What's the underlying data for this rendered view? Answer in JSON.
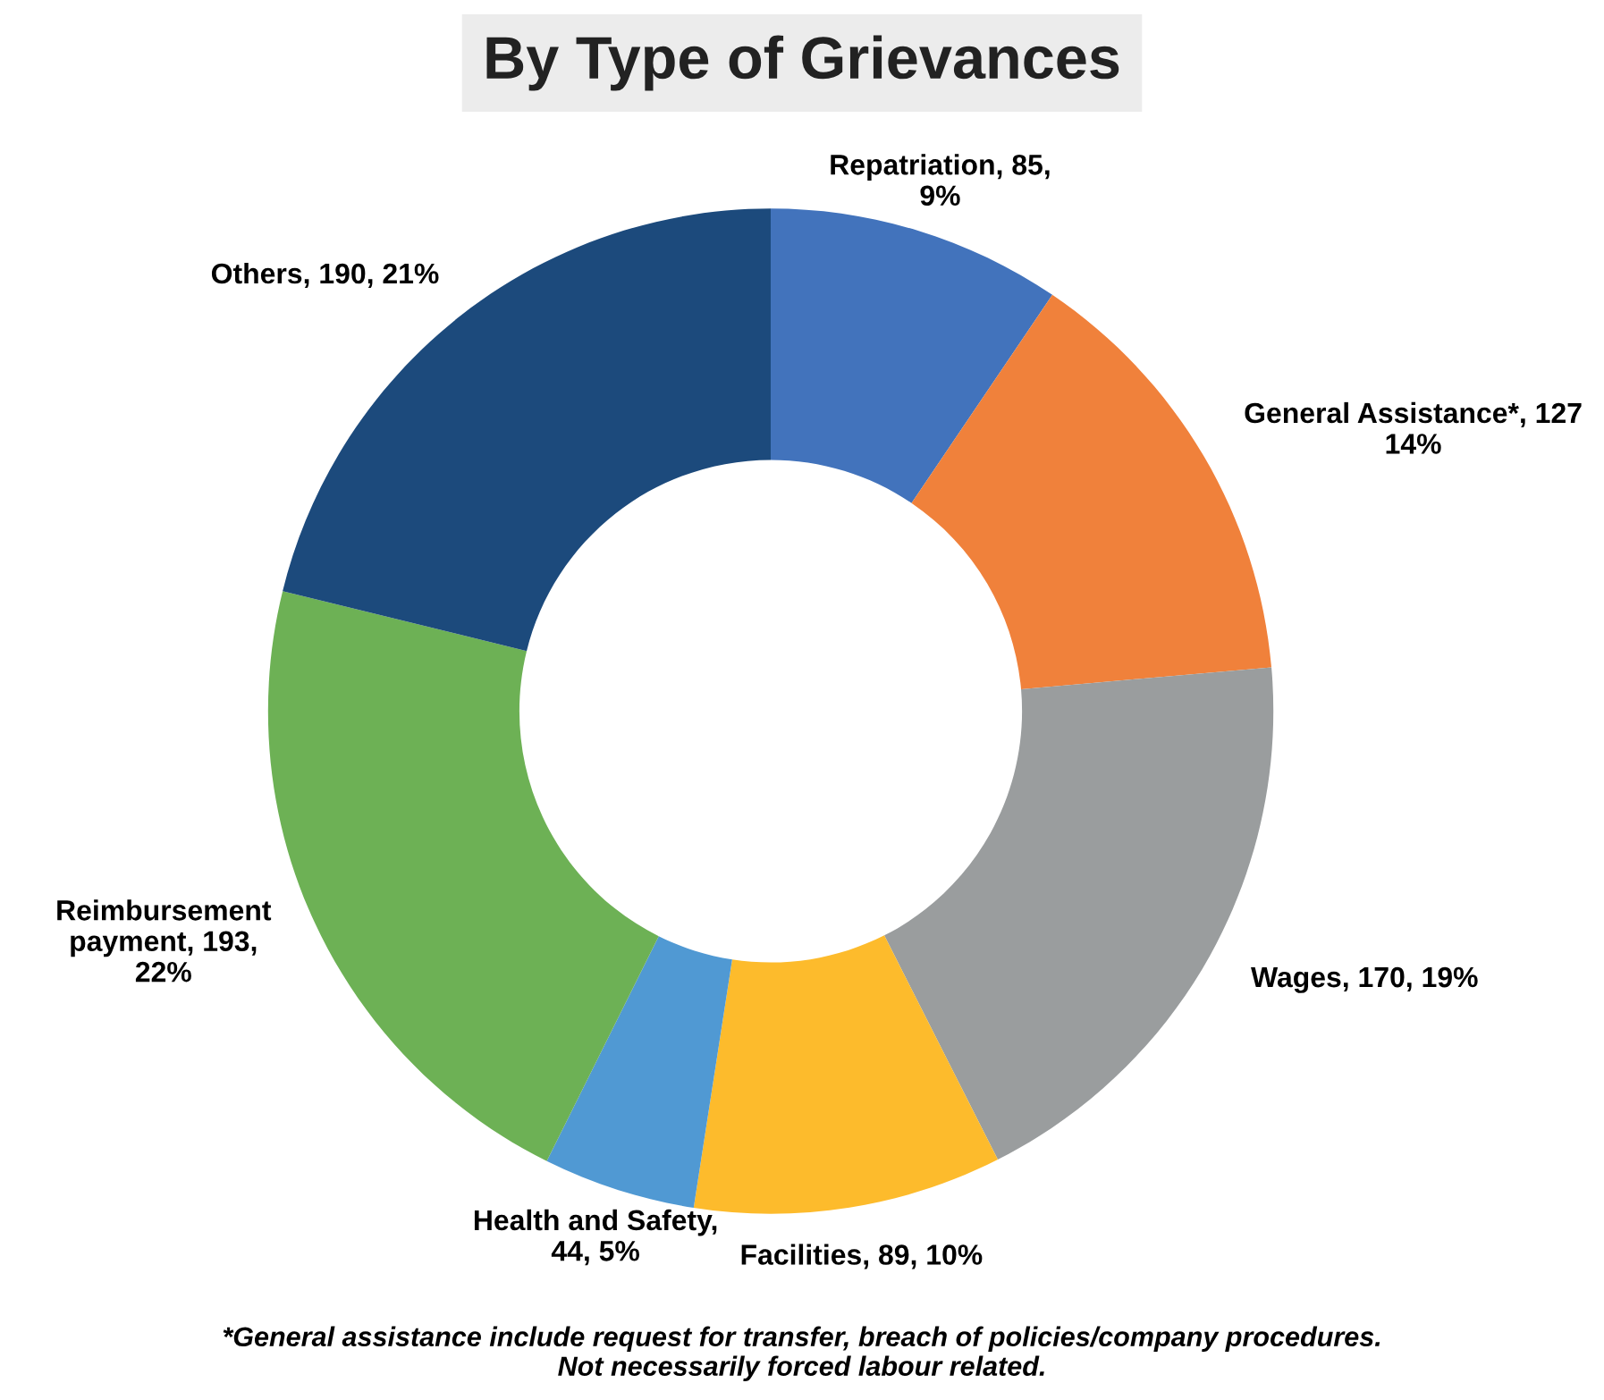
{
  "chart_data": {
    "type": "donut",
    "title": "By Type of Grievances",
    "categories": [
      "Repatriation",
      "General Assistance*",
      "Wages",
      "Facilities",
      "Health and Safety",
      "Reimbursement\npayment",
      "Others"
    ],
    "values": [
      85,
      127,
      170,
      89,
      44,
      193,
      190
    ],
    "value_labels": [
      ", 85,\n9%",
      ", 127\n14%",
      ", 170, 19%",
      ", 89, 10%",
      ",\n44, 5%",
      ", 193,\n22%",
      ", 190, 21%"
    ],
    "colors": [
      "#4273bc",
      "#f0813b",
      "#9a9d9e",
      "#fdbb2c",
      "#5099d3",
      "#6db155",
      "#1c4a7c"
    ],
    "annotations": [
      "*General assistance include request for transfer, breach of policies/company procedures.\nNot necessarily forced labour related."
    ],
    "legend": false
  }
}
